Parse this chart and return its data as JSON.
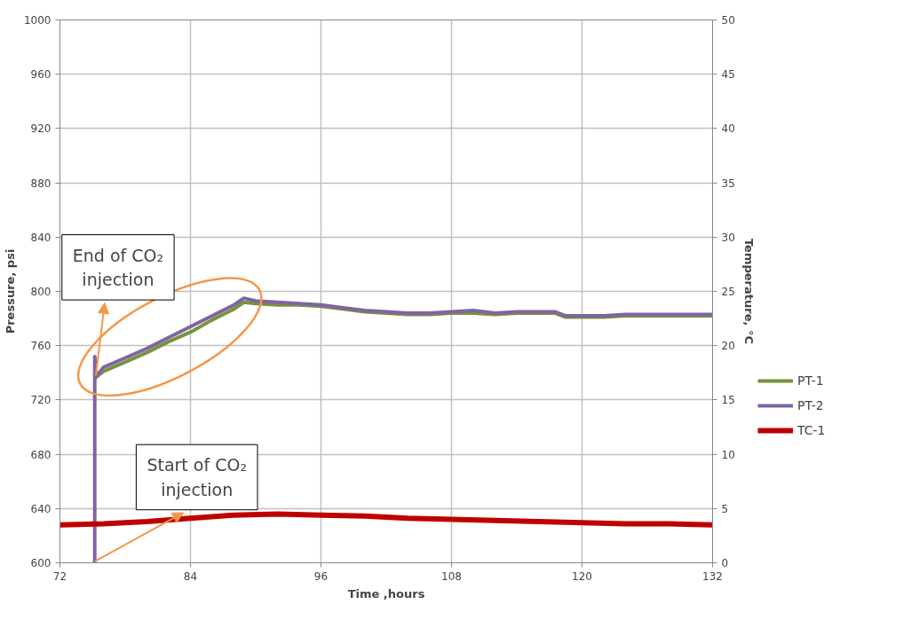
{
  "chart_data": {
    "type": "line",
    "xlabel": "Time ,hours",
    "ylabel": "Pressure, psi",
    "y2label": "Temperature, °C",
    "xlim": [
      72,
      132
    ],
    "xticks": [
      72,
      84,
      96,
      108,
      120,
      132
    ],
    "ylim": [
      600,
      1000
    ],
    "yticks": [
      600,
      640,
      680,
      720,
      760,
      800,
      840,
      880,
      920,
      960,
      1000
    ],
    "y2lim": [
      0,
      50
    ],
    "y2ticks": [
      0,
      5,
      10,
      15,
      20,
      25,
      30,
      35,
      40,
      45,
      50
    ],
    "grid": true,
    "legend": "right",
    "marker": "none",
    "line_style": "solid",
    "series": [
      {
        "name": "PT-1",
        "color": "#77933c",
        "x": [
          75.2,
          76,
          78,
          80,
          82,
          84,
          86,
          88,
          88.9,
          90,
          92,
          94,
          96,
          98,
          100,
          102,
          104,
          106,
          108,
          110,
          112,
          114,
          116,
          117.5,
          118.5,
          120,
          122,
          124,
          126,
          128,
          130,
          132
        ],
        "values": [
          736,
          741,
          748,
          755,
          763,
          770,
          779,
          787,
          792,
          791,
          790,
          790,
          789,
          787,
          785,
          784,
          783,
          783,
          784,
          784,
          783,
          784,
          784,
          784,
          781,
          781,
          781,
          782,
          782,
          782,
          782,
          782
        ]
      },
      {
        "name": "PT-2",
        "color": "#8064a2",
        "x": [
          75.2,
          75.2,
          75.3,
          76,
          78,
          80,
          82,
          84,
          86,
          88,
          88.9,
          90,
          92,
          94,
          96,
          98,
          100,
          102,
          104,
          106,
          108,
          110,
          112,
          114,
          116,
          117.5,
          118.5,
          120,
          122,
          124,
          126,
          128,
          130,
          132
        ],
        "values": [
          600,
          752,
          737,
          744,
          751,
          758,
          766,
          774,
          782,
          790,
          795,
          793,
          792,
          791,
          790,
          788,
          786,
          785,
          784,
          784,
          785,
          786,
          784,
          785,
          785,
          785,
          782,
          782,
          782,
          783,
          783,
          783,
          783,
          783
        ]
      },
      {
        "name": "TC-1",
        "color": "#c00000",
        "axis": "y2",
        "x": [
          72,
          76,
          80,
          84,
          88,
          92,
          96,
          100,
          104,
          108,
          112,
          116,
          120,
          124,
          128,
          132
        ],
        "values": [
          3.5,
          3.6,
          3.8,
          4.1,
          4.4,
          4.5,
          4.4,
          4.3,
          4.1,
          4.0,
          3.9,
          3.8,
          3.7,
          3.6,
          3.6,
          3.5
        ]
      }
    ],
    "annotations": [
      {
        "text": "End of CO₂\ninjection",
        "x": 75.3,
        "y": 738
      },
      {
        "text": "Start of CO₂\ninjection",
        "x": 75.2,
        "y": 601
      }
    ]
  }
}
